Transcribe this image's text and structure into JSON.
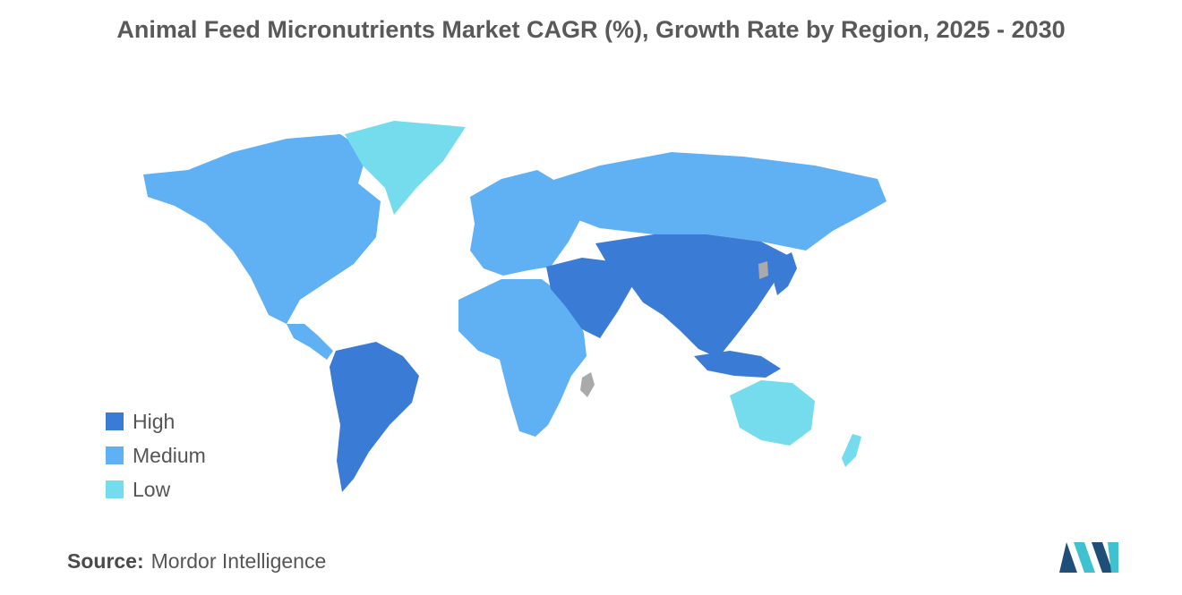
{
  "title": "Animal Feed Micronutrients Market CAGR (%), Growth Rate by Region, 2025 - 2030",
  "legend": [
    {
      "label": "High",
      "color": "#3a7bd5"
    },
    {
      "label": "Medium",
      "color": "#60b0f4"
    },
    {
      "label": "Low",
      "color": "#74dcec"
    }
  ],
  "no_data_color": "#aaaaaa",
  "source": {
    "key": "Source:",
    "value": "Mordor Intelligence"
  },
  "logo": {
    "icon": "mordor-intelligence-logo",
    "colors": [
      "#1f4e79",
      "#3fc1d0"
    ]
  }
}
